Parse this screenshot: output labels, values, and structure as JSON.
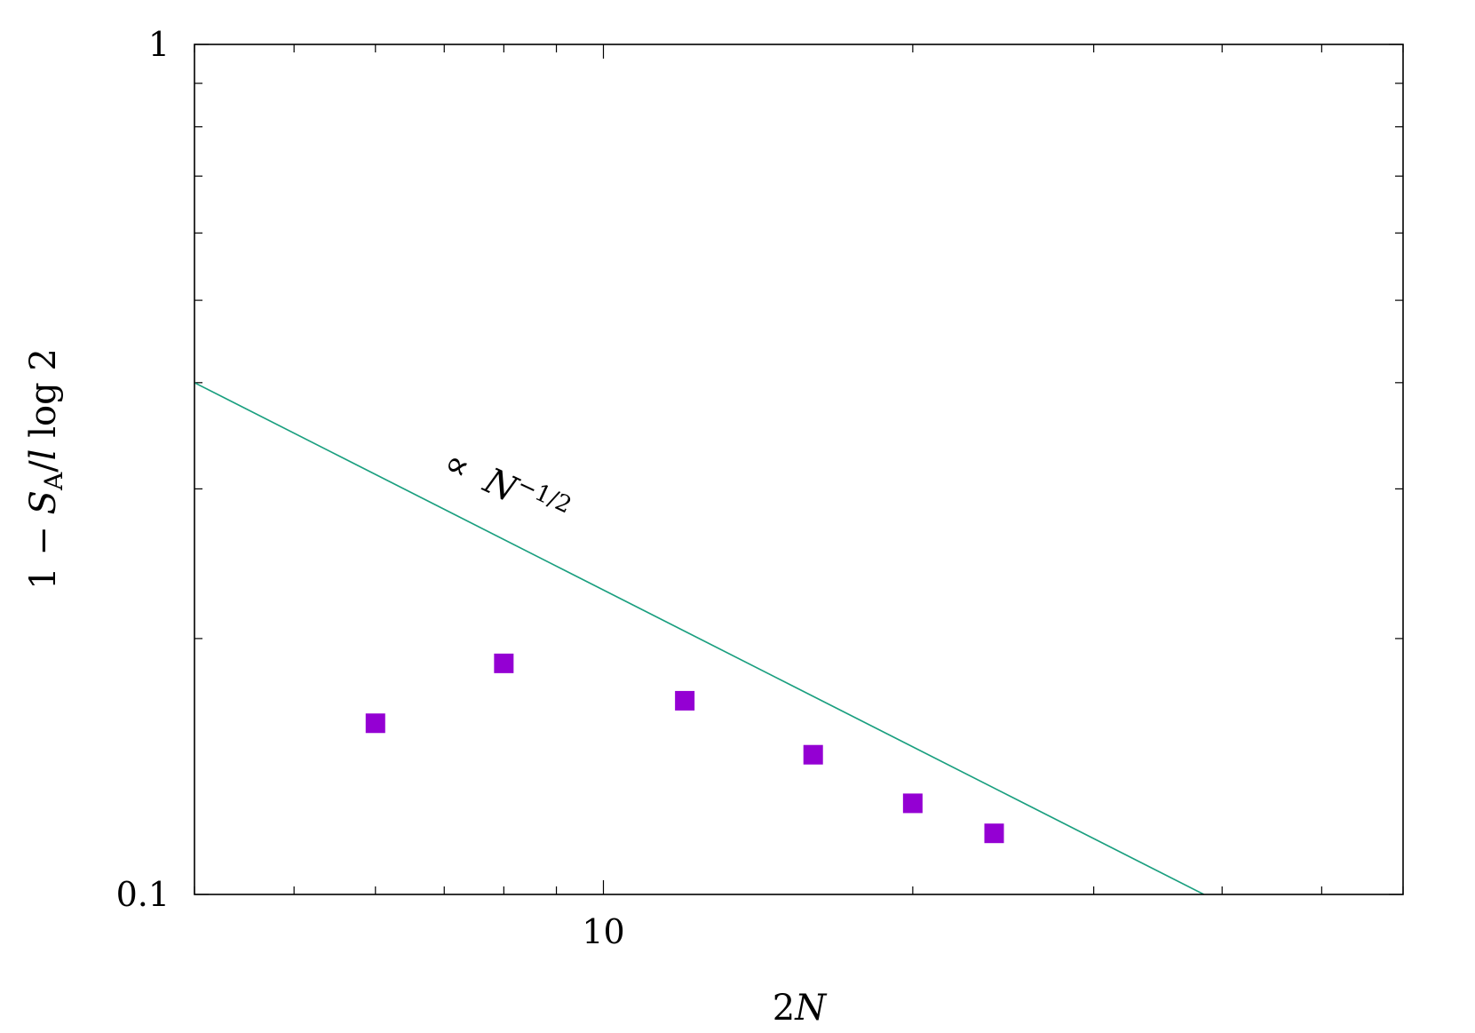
{
  "chart_data": {
    "type": "scatter",
    "xscale": "log",
    "yscale": "log",
    "xlim": [
      4,
      60
    ],
    "ylim": [
      0.1,
      1
    ],
    "x_tick_labels": [
      {
        "value": 10,
        "label": "10"
      }
    ],
    "y_tick_labels": [
      {
        "value": 0.1,
        "label": "0.1"
      },
      {
        "value": 1,
        "label": "1"
      }
    ],
    "xlabel": {
      "prefix": "2",
      "var": "N"
    },
    "ylabel": {
      "a": "1 − ",
      "s": "S",
      "sub": "A",
      "b": "/",
      "l": "l",
      "c": " log 2"
    },
    "series": [
      {
        "marker": "square",
        "color": "#9400d3",
        "x": [
          6,
          8,
          12,
          16,
          20,
          24
        ],
        "y": [
          0.159,
          0.187,
          0.169,
          0.146,
          0.128,
          0.118
        ]
      }
    ],
    "fit_line": {
      "color": "#1a9f7f",
      "proportionality": "∝",
      "var": "N",
      "exponent": "−1/2",
      "x": [
        4,
        38.4
      ],
      "y": [
        0.4,
        0.1
      ]
    }
  }
}
